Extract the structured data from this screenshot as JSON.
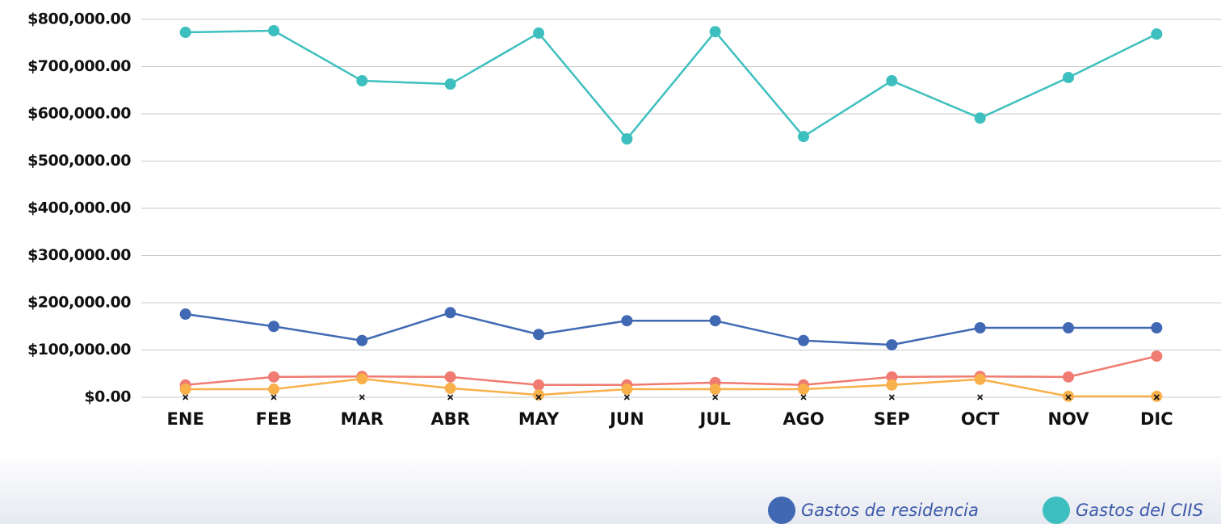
{
  "chart_data": {
    "type": "line",
    "categories": [
      "ENE",
      "FEB",
      "MAR",
      "ABR",
      "MAY",
      "JUN",
      "JUL",
      "AGO",
      "SEP",
      "OCT",
      "NOV",
      "DIC"
    ],
    "series": [
      {
        "name": "Gastos de residencia",
        "color": "#4169b3",
        "values": [
          176000,
          150000,
          120000,
          179000,
          133000,
          162000,
          162000,
          120000,
          111000,
          147000,
          147000,
          147000
        ]
      },
      {
        "name": "Gastos del CIIS",
        "color": "#3ebfbf",
        "values": [
          772600,
          776000,
          670000,
          663000,
          771000,
          547000,
          774000,
          552000,
          670000,
          591000,
          677000,
          769000
        ]
      },
      {
        "color": "#f07b72",
        "values": [
          26000,
          43000,
          44000,
          43000,
          26000,
          26000,
          31000,
          26000,
          43000,
          44000,
          43000,
          87000
        ]
      },
      {
        "color": "#f8b04a",
        "values": [
          17000,
          17000,
          39000,
          19000,
          5000,
          17000,
          17000,
          17000,
          26000,
          38000,
          2000,
          2000
        ]
      },
      {
        "color": "#111111",
        "marker": "x",
        "values": [
          0,
          0,
          0,
          0,
          0,
          0,
          0,
          0,
          0,
          0,
          0,
          0
        ]
      }
    ],
    "ylim": [
      0,
      800000
    ],
    "yticks": [
      {
        "value": 0,
        "label": "$0.00"
      },
      {
        "value": 100000,
        "label": "$100,000.00"
      },
      {
        "value": 200000,
        "label": "$200,000.00"
      },
      {
        "value": 300000,
        "label": "$300,000.00"
      },
      {
        "value": 400000,
        "label": "$400,000.00"
      },
      {
        "value": 500000,
        "label": "$500,000.00"
      },
      {
        "value": 600000,
        "label": "$600,000.00"
      },
      {
        "value": 700000,
        "label": "$700,000.00"
      },
      {
        "value": 800000,
        "label": "$800,000.00"
      }
    ],
    "grid": true,
    "legend": "bottom-right"
  }
}
